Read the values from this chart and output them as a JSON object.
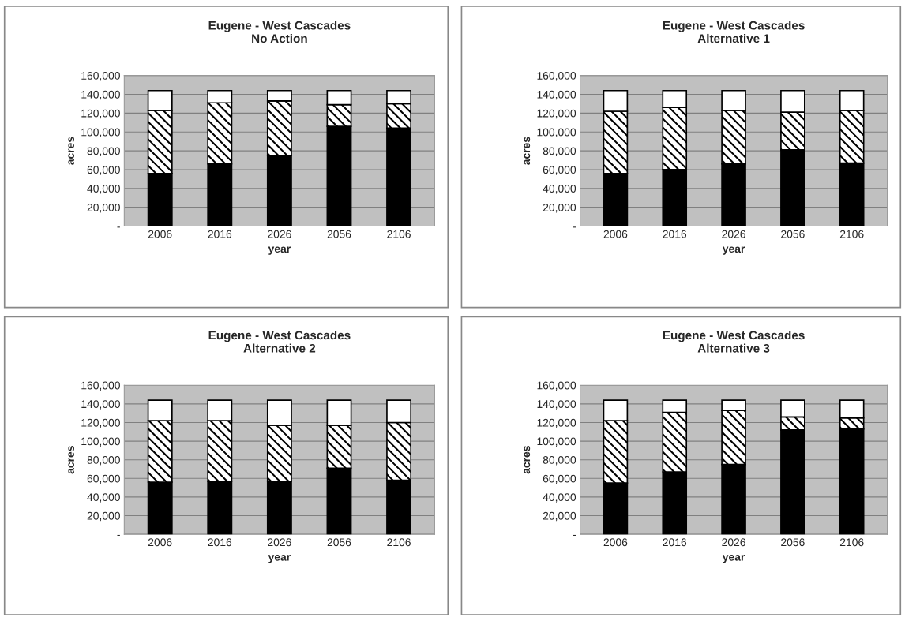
{
  "chart_data": [
    {
      "type": "bar",
      "title": "Eugene - West Cascades\nNo Action",
      "xlabel": "year",
      "ylabel": "acres",
      "categories": [
        "2006",
        "2016",
        "2026",
        "2056",
        "2106"
      ],
      "stacked": true,
      "grid": "y",
      "ylim": [
        0,
        160000
      ],
      "yticks": [
        {
          "value": 0,
          "label": "-"
        },
        {
          "value": 20000,
          "label": "20,000"
        },
        {
          "value": 40000,
          "label": "40,000"
        },
        {
          "value": 60000,
          "label": "60,000"
        },
        {
          "value": 80000,
          "label": "80,000"
        },
        {
          "value": 100000,
          "label": "100,000"
        },
        {
          "value": 120000,
          "label": "120,000"
        },
        {
          "value": 140000,
          "label": "140,000"
        },
        {
          "value": 160000,
          "label": "160,000"
        }
      ],
      "series": [
        {
          "color": "#000000",
          "values": [
            56000,
            66000,
            75000,
            106000,
            104000
          ]
        },
        {
          "color": "#000000",
          "values": [
            67000,
            65000,
            58000,
            23000,
            26000
          ]
        },
        {
          "color": "#ffffff",
          "values": [
            21000,
            13000,
            11000,
            15000,
            14000
          ]
        }
      ]
    },
    {
      "type": "bar",
      "title": "Eugene - West Cascades\nAlternative 1",
      "xlabel": "year",
      "ylabel": "acres",
      "categories": [
        "2006",
        "2016",
        "2026",
        "2056",
        "2106"
      ],
      "stacked": true,
      "grid": "y",
      "ylim": [
        0,
        160000
      ],
      "yticks": [
        {
          "value": 0,
          "label": "-"
        },
        {
          "value": 20000,
          "label": "20,000"
        },
        {
          "value": 40000,
          "label": "40,000"
        },
        {
          "value": 60000,
          "label": "60,000"
        },
        {
          "value": 80000,
          "label": "80,000"
        },
        {
          "value": 100000,
          "label": "100,000"
        },
        {
          "value": 120000,
          "label": "120,000"
        },
        {
          "value": 140000,
          "label": "140,000"
        },
        {
          "value": 160000,
          "label": "160,000"
        }
      ],
      "series": [
        {
          "color": "#000000",
          "values": [
            56000,
            60000,
            66000,
            81000,
            67000
          ]
        },
        {
          "color": "#000000",
          "values": [
            66000,
            66000,
            57000,
            40000,
            56000
          ]
        },
        {
          "color": "#ffffff",
          "values": [
            22000,
            18000,
            21000,
            23000,
            21000
          ]
        }
      ]
    },
    {
      "type": "bar",
      "title": "Eugene - West Cascades\nAlternative 2",
      "xlabel": "year",
      "ylabel": "acres",
      "categories": [
        "2006",
        "2016",
        "2026",
        "2056",
        "2106"
      ],
      "stacked": true,
      "grid": "y",
      "ylim": [
        0,
        160000
      ],
      "yticks": [
        {
          "value": 0,
          "label": "-"
        },
        {
          "value": 20000,
          "label": "20,000"
        },
        {
          "value": 40000,
          "label": "40,000"
        },
        {
          "value": 60000,
          "label": "60,000"
        },
        {
          "value": 80000,
          "label": "80,000"
        },
        {
          "value": 100000,
          "label": "100,000"
        },
        {
          "value": 120000,
          "label": "120,000"
        },
        {
          "value": 140000,
          "label": "140,000"
        },
        {
          "value": 160000,
          "label": "160,000"
        }
      ],
      "series": [
        {
          "color": "#000000",
          "values": [
            56000,
            57000,
            57000,
            71000,
            58000
          ]
        },
        {
          "color": "#000000",
          "values": [
            66000,
            65000,
            60000,
            46000,
            62000
          ]
        },
        {
          "color": "#ffffff",
          "values": [
            22000,
            22000,
            27000,
            27000,
            24000
          ]
        }
      ]
    },
    {
      "type": "bar",
      "title": "Eugene - West Cascades\nAlternative 3",
      "xlabel": "year",
      "ylabel": "acres",
      "categories": [
        "2006",
        "2016",
        "2026",
        "2056",
        "2106"
      ],
      "stacked": true,
      "grid": "y",
      "ylim": [
        0,
        160000
      ],
      "yticks": [
        {
          "value": 0,
          "label": "-"
        },
        {
          "value": 20000,
          "label": "20,000"
        },
        {
          "value": 40000,
          "label": "40,000"
        },
        {
          "value": 60000,
          "label": "60,000"
        },
        {
          "value": 80000,
          "label": "80,000"
        },
        {
          "value": 100000,
          "label": "100,000"
        },
        {
          "value": 120000,
          "label": "120,000"
        },
        {
          "value": 140000,
          "label": "140,000"
        },
        {
          "value": 160000,
          "label": "160,000"
        }
      ],
      "series": [
        {
          "color": "#000000",
          "values": [
            55000,
            67000,
            75000,
            112000,
            113000
          ]
        },
        {
          "color": "#000000",
          "values": [
            67000,
            64000,
            58000,
            14000,
            12000
          ]
        },
        {
          "color": "#ffffff",
          "values": [
            22000,
            13000,
            11000,
            18000,
            19000
          ]
        }
      ]
    }
  ]
}
